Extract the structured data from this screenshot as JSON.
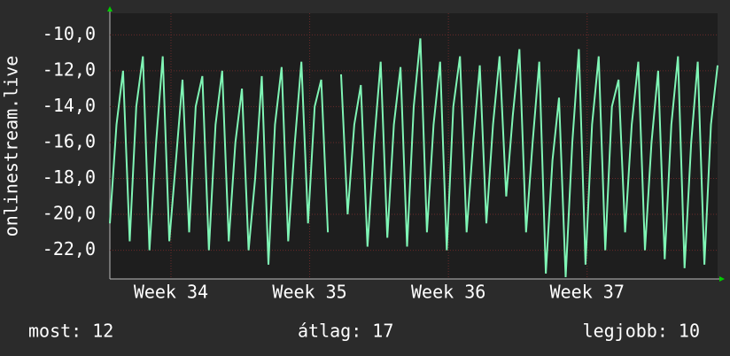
{
  "chart_data": {
    "type": "line",
    "y_label": "onlinestream.live",
    "x": [
      0,
      8,
      16,
      24,
      32,
      40,
      48,
      56,
      64,
      72,
      80,
      88,
      96,
      104,
      112,
      120,
      128,
      136,
      144,
      152,
      160,
      168,
      176,
      184,
      192,
      200,
      208,
      216,
      224,
      232,
      240,
      248,
      256,
      264,
      272,
      280,
      288,
      296,
      304,
      312,
      320,
      328,
      336,
      344,
      352,
      360,
      368,
      376,
      384,
      392,
      400,
      408,
      416,
      424,
      432,
      440,
      448,
      456,
      464,
      472,
      480,
      488,
      496,
      504,
      512,
      520,
      528,
      536,
      544,
      552,
      560,
      568,
      576,
      584,
      592,
      600,
      608,
      616,
      624,
      632,
      640,
      648,
      656,
      664,
      672,
      680,
      688,
      696,
      704,
      712,
      720,
      728,
      736
    ],
    "values": [
      -20.5,
      -15,
      -12,
      -21.5,
      -14,
      -11.2,
      -22,
      -16,
      -11.2,
      -21.5,
      -17,
      -12.5,
      -21,
      -14,
      -12.3,
      -22,
      -15,
      -12,
      -21.5,
      -16,
      -13,
      -22,
      -18,
      -12.3,
      -22.8,
      -15,
      -11.8,
      -21.5,
      -16,
      -11.5,
      -20.5,
      -14,
      -12.5,
      -21,
      null,
      -12.2,
      -20,
      -15,
      -12.8,
      -21.8,
      -16,
      -11.5,
      -21.3,
      -15,
      -11.8,
      -21.8,
      -14,
      -10.2,
      -21,
      -15,
      -11.5,
      -22,
      -14,
      -11.2,
      -21,
      -16,
      -11.7,
      -20.5,
      -15,
      -11.2,
      -19,
      -14.5,
      -10.8,
      -21,
      -16,
      -11.5,
      -23.3,
      -17,
      -13.5,
      -23.5,
      -16,
      -10.8,
      -22.8,
      -15,
      -11.2,
      -22,
      -14,
      -12.5,
      -21,
      -15,
      -11.5,
      -22,
      -16,
      -12,
      -22.5,
      -15,
      -11.2,
      -23,
      -16,
      -11.5,
      -22.8,
      -15,
      -11.7
    ],
    "color": "#7ff5b5",
    "xlim": [
      0,
      736
    ],
    "xticks": [
      {
        "value": 74,
        "label": "Week 34"
      },
      {
        "value": 242,
        "label": "Week 35"
      },
      {
        "value": 410,
        "label": "Week 36"
      },
      {
        "value": 578,
        "label": "Week 37"
      }
    ],
    "ylim": [
      -23.6,
      -8.8
    ],
    "yticks": [
      {
        "value": -10,
        "label": "-10,0"
      },
      {
        "value": -12,
        "label": "-12,0"
      },
      {
        "value": -14,
        "label": "-14,0"
      },
      {
        "value": -16,
        "label": "-16,0"
      },
      {
        "value": -18,
        "label": "-18,0"
      },
      {
        "value": -20,
        "label": "-20,0"
      },
      {
        "value": -22,
        "label": "-22,0"
      }
    ],
    "grid": true,
    "stats": [
      "most: 12",
      "átlag: 17",
      "legjobb: 10"
    ]
  }
}
